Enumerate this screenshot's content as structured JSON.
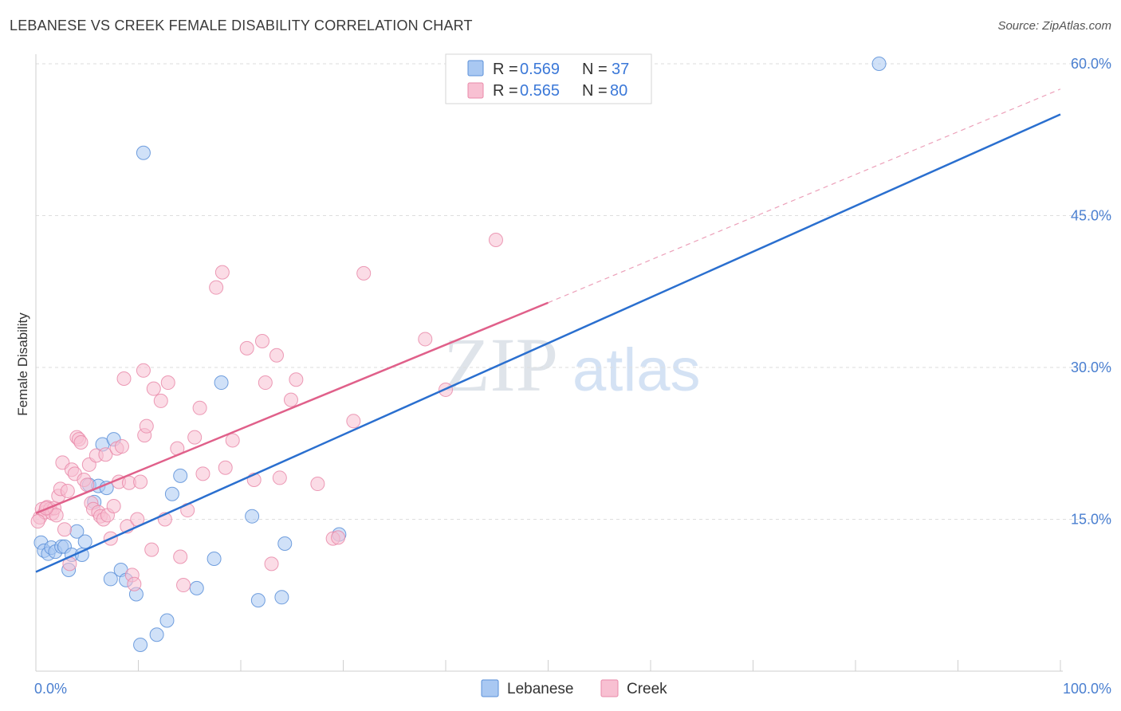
{
  "header": {
    "title": "LEBANESE VS CREEK FEMALE DISABILITY CORRELATION CHART",
    "source": "Source: ZipAtlas.com"
  },
  "watermark": {
    "zip": "ZIP",
    "atlas": "atlas"
  },
  "colors": {
    "lebanese_fill": "#a9c8f2",
    "lebanese_stroke": "#5a8fd8",
    "lebanese_line": "#2a6fcf",
    "creek_fill": "#f8c0d2",
    "creek_stroke": "#e98aa9",
    "creek_line": "#e0608a",
    "tick_label": "#4a7fd0"
  },
  "legend": {
    "rows": [
      {
        "r_label": "R =",
        "r_value": "0.569",
        "n_label": "N =",
        "n_value": "37"
      },
      {
        "r_label": "R =",
        "r_value": "0.565",
        "n_label": "N =",
        "n_value": "80"
      }
    ]
  },
  "chart_data": {
    "type": "scatter",
    "title": "LEBANESE VS CREEK FEMALE DISABILITY CORRELATION CHART",
    "xlabel": "",
    "ylabel": "Female Disability",
    "xlim": [
      0,
      100
    ],
    "ylim": [
      0,
      60
    ],
    "x_tick_labels": [
      "0.0%",
      "100.0%"
    ],
    "y_ticks": [
      15,
      30,
      45,
      60
    ],
    "y_tick_labels": [
      "15.0%",
      "30.0%",
      "45.0%",
      "60.0%"
    ],
    "grid": true,
    "legend_position": "top-center",
    "series": [
      {
        "name": "Lebanese",
        "R": 0.569,
        "N": 37,
        "trend": {
          "x": [
            0,
            100
          ],
          "y": [
            9.8,
            55.0
          ],
          "dashed_extension": false
        },
        "points": [
          [
            0.5,
            12.7
          ],
          [
            0.8,
            11.9
          ],
          [
            1.2,
            11.6
          ],
          [
            1.5,
            12.2
          ],
          [
            1.9,
            11.8
          ],
          [
            2.5,
            12.3
          ],
          [
            2.8,
            12.3
          ],
          [
            3.2,
            10.0
          ],
          [
            3.5,
            11.5
          ],
          [
            4.0,
            13.8
          ],
          [
            4.5,
            11.5
          ],
          [
            4.8,
            12.8
          ],
          [
            5.2,
            18.4
          ],
          [
            5.7,
            16.7
          ],
          [
            6.1,
            18.3
          ],
          [
            6.5,
            22.4
          ],
          [
            6.9,
            18.1
          ],
          [
            7.3,
            9.1
          ],
          [
            7.6,
            22.9
          ],
          [
            8.3,
            10.0
          ],
          [
            8.8,
            9.0
          ],
          [
            9.8,
            7.6
          ],
          [
            10.2,
            2.6
          ],
          [
            10.5,
            51.2
          ],
          [
            11.8,
            3.6
          ],
          [
            12.8,
            5.0
          ],
          [
            13.3,
            17.5
          ],
          [
            14.1,
            19.3
          ],
          [
            15.7,
            8.2
          ],
          [
            17.4,
            11.1
          ],
          [
            18.1,
            28.5
          ],
          [
            21.1,
            15.3
          ],
          [
            21.7,
            7.0
          ],
          [
            24.0,
            7.3
          ],
          [
            24.3,
            12.6
          ],
          [
            29.6,
            13.5
          ],
          [
            82.3,
            60.0
          ]
        ]
      },
      {
        "name": "Creek",
        "R": 0.565,
        "N": 80,
        "trend": {
          "x": [
            0,
            50
          ],
          "y": [
            15.6,
            36.4
          ],
          "dashed_extension": true,
          "dashed_to": [
            100,
            57.5
          ]
        },
        "points": [
          [
            0.4,
            15.2
          ],
          [
            0.6,
            16.0
          ],
          [
            0.9,
            15.7
          ],
          [
            1.1,
            16.2
          ],
          [
            1.4,
            16.0
          ],
          [
            1.6,
            15.6
          ],
          [
            1.8,
            16.1
          ],
          [
            2.0,
            15.4
          ],
          [
            2.2,
            17.3
          ],
          [
            2.4,
            18.0
          ],
          [
            2.6,
            20.6
          ],
          [
            2.8,
            14.0
          ],
          [
            3.1,
            17.8
          ],
          [
            3.3,
            10.6
          ],
          [
            3.5,
            19.9
          ],
          [
            3.8,
            19.5
          ],
          [
            4.0,
            23.1
          ],
          [
            4.2,
            22.9
          ],
          [
            4.4,
            22.6
          ],
          [
            4.7,
            18.9
          ],
          [
            5.0,
            18.4
          ],
          [
            5.2,
            20.4
          ],
          [
            5.4,
            16.6
          ],
          [
            5.6,
            16.0
          ],
          [
            5.9,
            21.3
          ],
          [
            6.1,
            15.7
          ],
          [
            6.3,
            15.3
          ],
          [
            6.6,
            15.0
          ],
          [
            6.8,
            21.4
          ],
          [
            7.0,
            15.4
          ],
          [
            7.3,
            13.1
          ],
          [
            7.6,
            16.3
          ],
          [
            7.9,
            22.0
          ],
          [
            8.1,
            18.7
          ],
          [
            8.4,
            22.2
          ],
          [
            8.6,
            28.9
          ],
          [
            8.9,
            14.3
          ],
          [
            9.1,
            18.6
          ],
          [
            9.4,
            9.5
          ],
          [
            9.6,
            8.6
          ],
          [
            9.9,
            15.0
          ],
          [
            10.2,
            18.7
          ],
          [
            10.5,
            29.7
          ],
          [
            10.6,
            23.3
          ],
          [
            10.8,
            24.2
          ],
          [
            11.3,
            12.0
          ],
          [
            11.5,
            27.9
          ],
          [
            12.2,
            26.7
          ],
          [
            12.6,
            15.0
          ],
          [
            12.9,
            28.5
          ],
          [
            13.8,
            22.0
          ],
          [
            14.1,
            11.3
          ],
          [
            14.4,
            8.5
          ],
          [
            14.8,
            15.9
          ],
          [
            15.5,
            23.1
          ],
          [
            16.0,
            26.0
          ],
          [
            16.3,
            19.5
          ],
          [
            17.6,
            37.9
          ],
          [
            18.2,
            39.4
          ],
          [
            18.5,
            20.1
          ],
          [
            19.2,
            22.8
          ],
          [
            20.6,
            31.9
          ],
          [
            21.3,
            18.9
          ],
          [
            22.1,
            32.6
          ],
          [
            22.4,
            28.5
          ],
          [
            23.0,
            10.6
          ],
          [
            23.5,
            31.2
          ],
          [
            23.8,
            19.1
          ],
          [
            24.9,
            26.8
          ],
          [
            25.4,
            28.8
          ],
          [
            27.5,
            18.5
          ],
          [
            29.0,
            13.1
          ],
          [
            29.5,
            13.2
          ],
          [
            31.0,
            24.7
          ],
          [
            32.0,
            39.3
          ],
          [
            38.0,
            32.8
          ],
          [
            40.0,
            27.8
          ],
          [
            44.9,
            42.6
          ],
          [
            0.2,
            14.8
          ],
          [
            1.0,
            16.1
          ]
        ]
      }
    ]
  },
  "bottom_legend": {
    "items": [
      {
        "label": "Lebanese"
      },
      {
        "label": "Creek"
      }
    ]
  }
}
